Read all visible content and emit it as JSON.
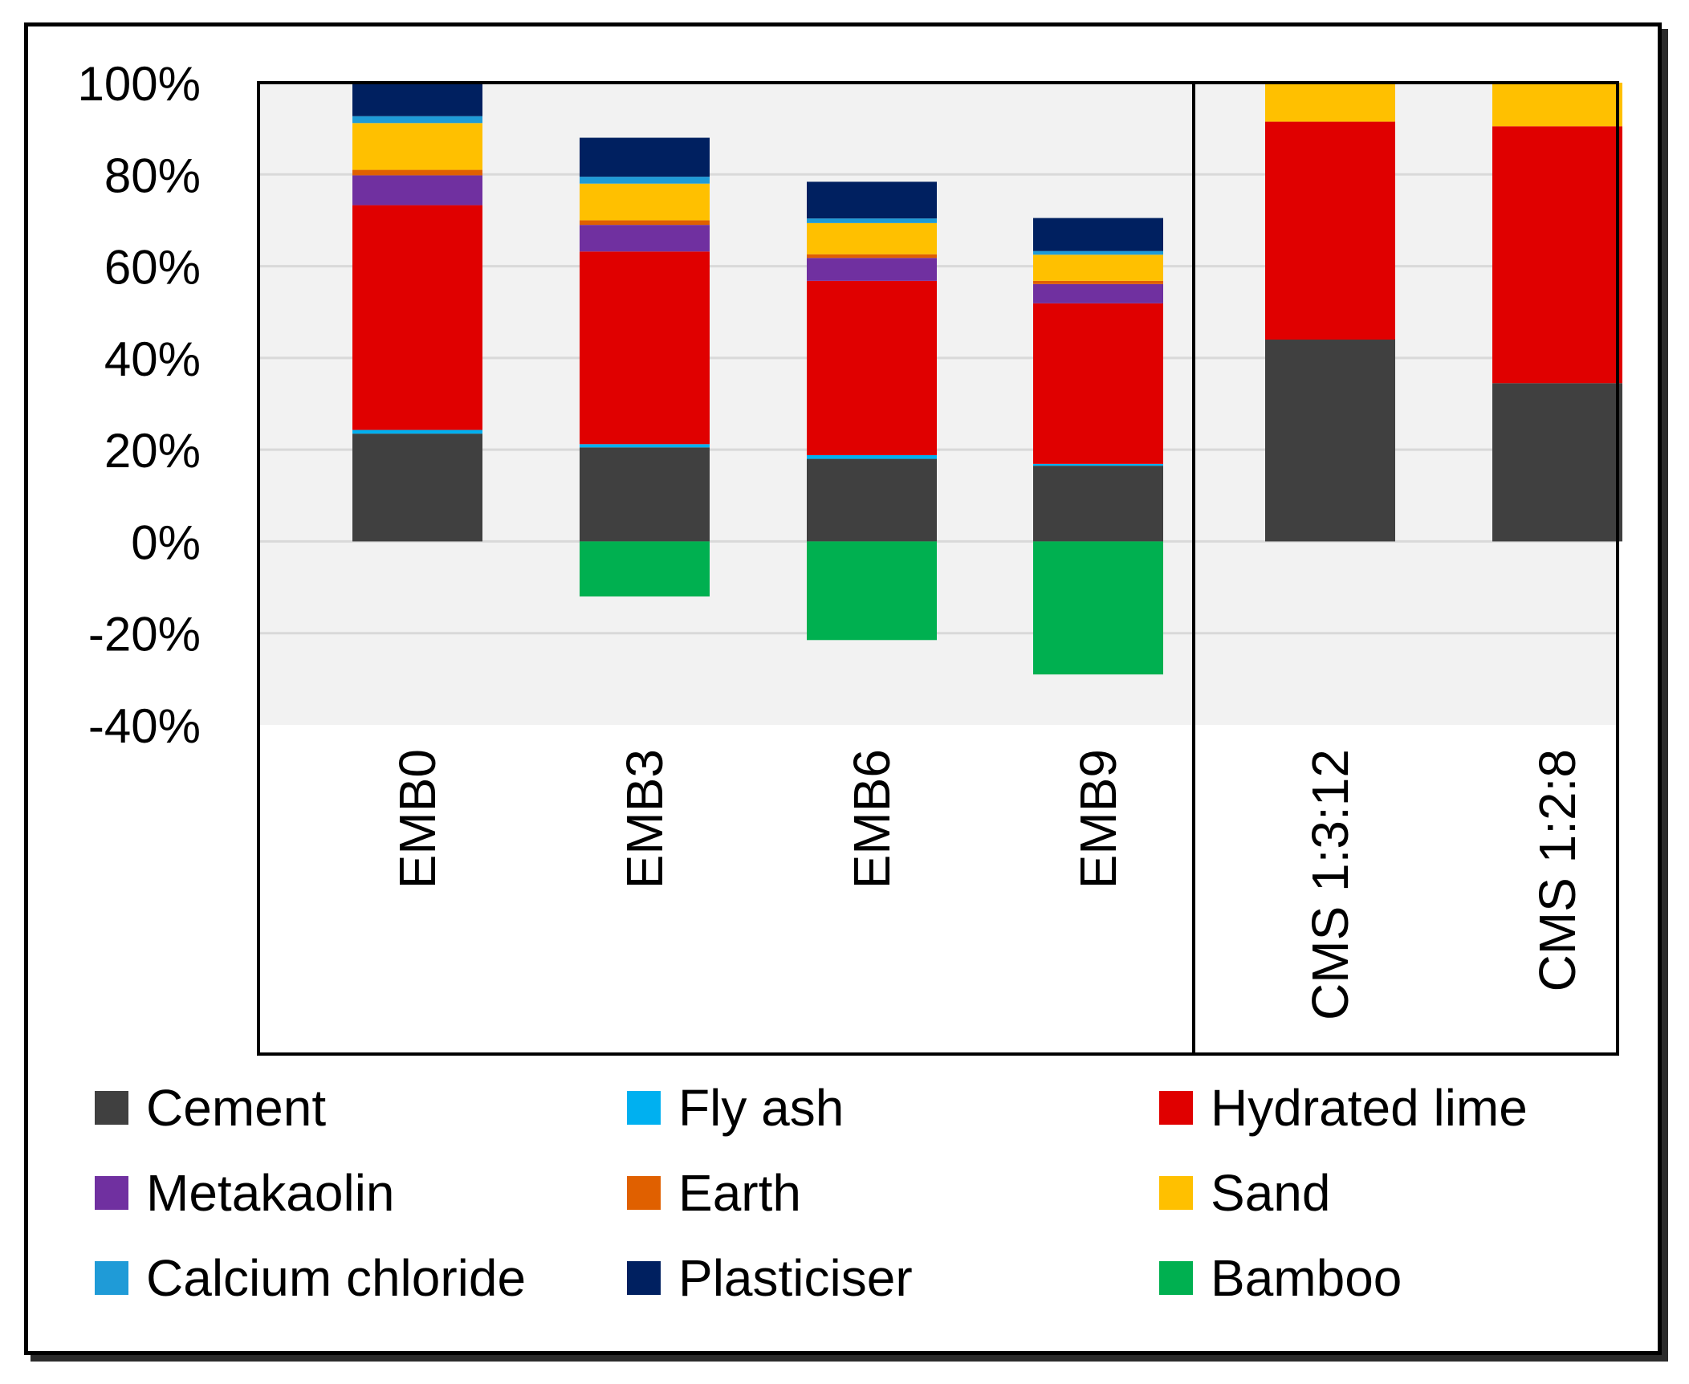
{
  "chart_data": {
    "type": "bar",
    "stacked": true,
    "categories": [
      "EMB0",
      "EMB3",
      "EMB6",
      "EMB9",
      "CMS 1:3:12",
      "CMS 1:2:8"
    ],
    "yticks": [
      "100%",
      "80%",
      "60%",
      "40%",
      "20%",
      "0%",
      "-20%",
      "-40%"
    ],
    "ylim": [
      -40,
      100
    ],
    "grid": true,
    "legend_position": "bottom",
    "series": [
      {
        "name": "Cement",
        "color": "#404040",
        "values": [
          23.5,
          20.5,
          18.0,
          16.5,
          44.0,
          34.5
        ]
      },
      {
        "name": "Fly ash",
        "color": "#00b0f0",
        "values": [
          0.8,
          0.7,
          0.8,
          0.4,
          0,
          0
        ]
      },
      {
        "name": "Hydrated lime",
        "color": "#e00000",
        "values": [
          49.0,
          42.0,
          38.0,
          35.0,
          47.5,
          56.0
        ]
      },
      {
        "name": "Metakaolin",
        "color": "#7030a0",
        "values": [
          6.5,
          5.8,
          5.0,
          4.2,
          0,
          0
        ]
      },
      {
        "name": "Earth",
        "color": "#e06000",
        "values": [
          1.2,
          1.0,
          0.8,
          0.7,
          0,
          0
        ]
      },
      {
        "name": "Sand",
        "color": "#ffc000",
        "values": [
          10.2,
          8.0,
          6.8,
          5.7,
          8.5,
          9.5
        ]
      },
      {
        "name": "Calcium chloride",
        "color": "#1f9bd7",
        "values": [
          1.5,
          1.5,
          1.0,
          0.8,
          0,
          0
        ]
      },
      {
        "name": "Plasticiser",
        "color": "#002060",
        "values": [
          7.3,
          8.5,
          8.0,
          7.2,
          0,
          0
        ]
      },
      {
        "name": "Bamboo",
        "color": "#00b050",
        "values": [
          0,
          -12.0,
          -21.5,
          -29.0,
          0,
          0
        ]
      }
    ]
  }
}
